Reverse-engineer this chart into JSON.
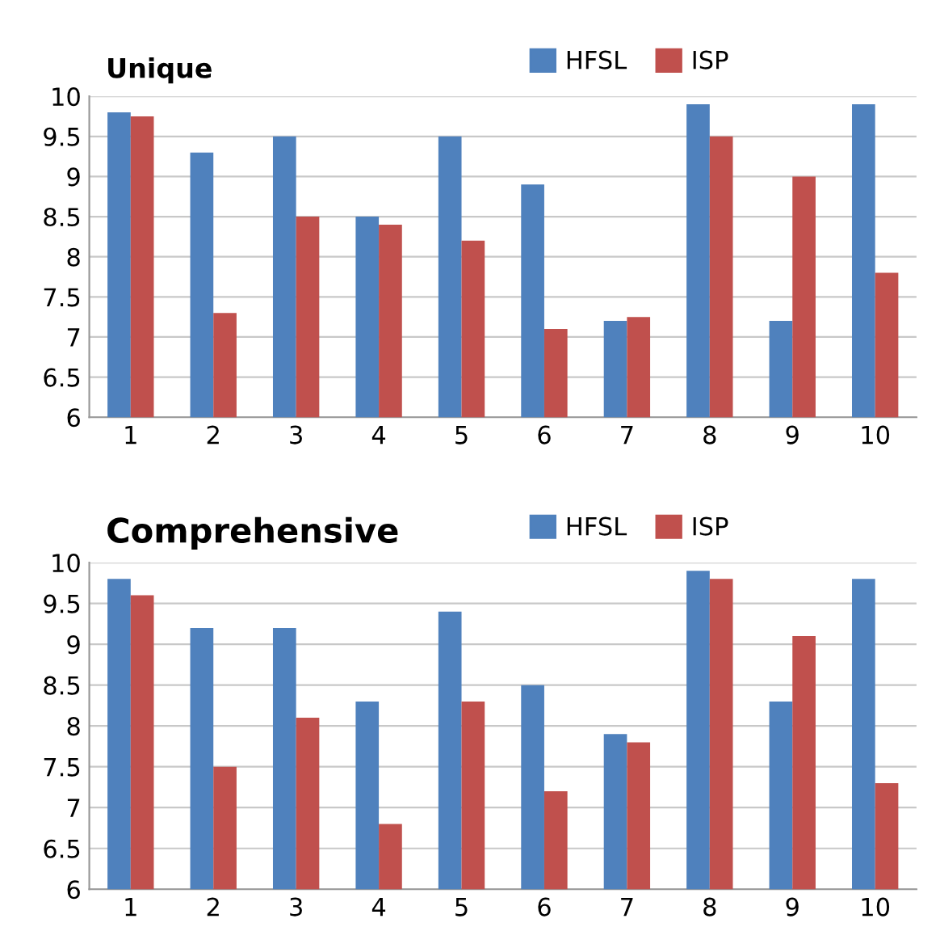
{
  "chart_data": [
    {
      "type": "bar",
      "title": "Unique",
      "categories": [
        "1",
        "2",
        "3",
        "4",
        "5",
        "6",
        "7",
        "8",
        "9",
        "10"
      ],
      "series": [
        {
          "name": "HFSL",
          "color": "#4f81bd",
          "values": [
            9.8,
            9.3,
            9.5,
            8.5,
            9.5,
            8.9,
            7.2,
            9.9,
            7.2,
            9.9
          ]
        },
        {
          "name": "ISP",
          "color": "#c0504d",
          "values": [
            9.75,
            7.3,
            8.5,
            8.4,
            8.2,
            7.1,
            7.25,
            9.5,
            9.0,
            7.8
          ]
        }
      ],
      "ylim": [
        6,
        10
      ],
      "yticks": [
        6,
        6.5,
        7,
        7.5,
        8,
        8.5,
        9,
        9.5,
        10
      ],
      "grid": "y",
      "legend": "top right"
    },
    {
      "type": "bar",
      "title": "Comprehensive",
      "categories": [
        "1",
        "2",
        "3",
        "4",
        "5",
        "6",
        "7",
        "8",
        "9",
        "10"
      ],
      "series": [
        {
          "name": "HFSL",
          "color": "#4f81bd",
          "values": [
            9.8,
            9.2,
            9.2,
            8.3,
            9.4,
            8.5,
            7.9,
            9.9,
            8.3,
            9.8
          ]
        },
        {
          "name": "ISP",
          "color": "#c0504d",
          "values": [
            9.6,
            7.5,
            8.1,
            6.8,
            8.3,
            7.2,
            7.8,
            9.8,
            9.1,
            7.3
          ]
        }
      ],
      "ylim": [
        6,
        10
      ],
      "yticks": [
        6,
        6.5,
        7,
        7.5,
        8,
        8.5,
        9,
        9.5,
        10
      ],
      "grid": "y",
      "legend": "top right"
    }
  ]
}
